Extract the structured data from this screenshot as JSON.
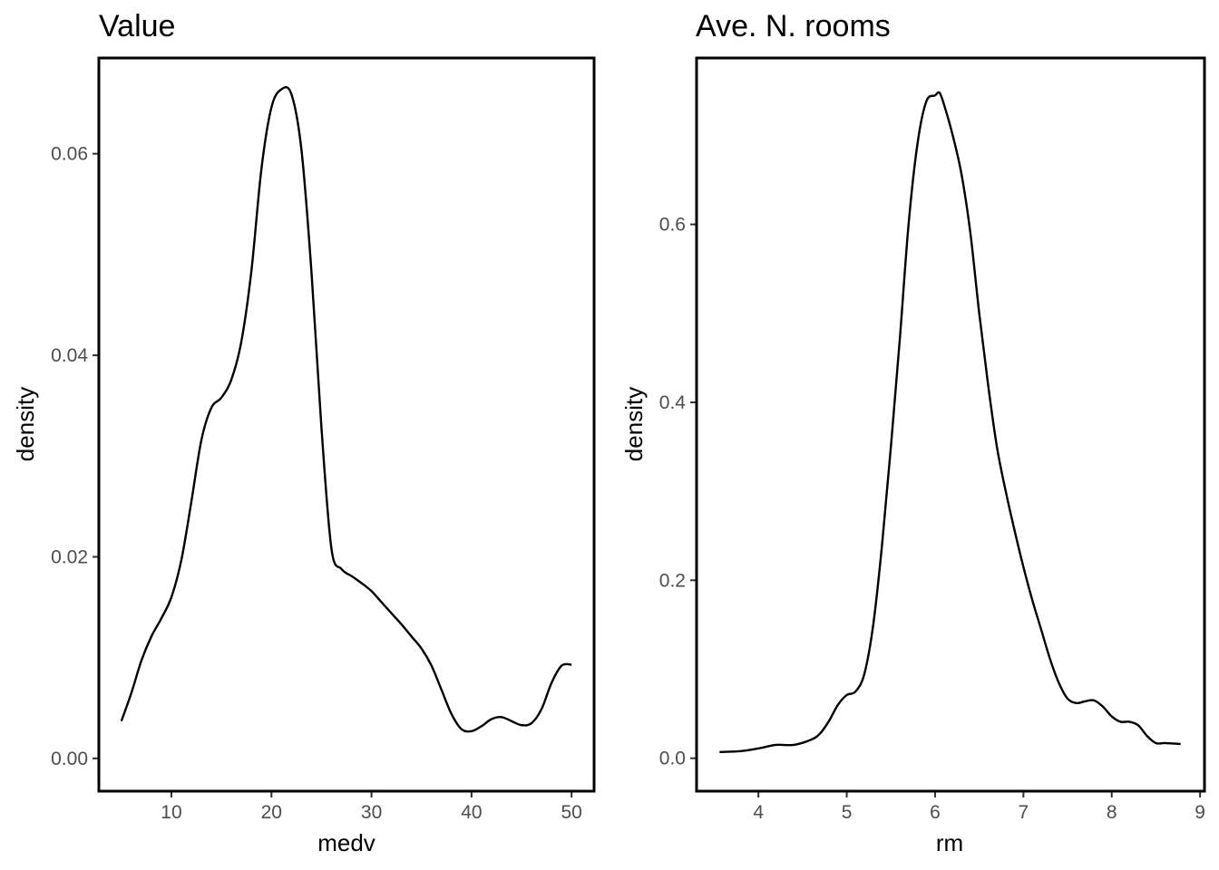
{
  "chart_data": [
    {
      "type": "line",
      "title": "Value",
      "xlabel": "medv",
      "ylabel": "density",
      "xlim": [
        2.75,
        52.25
      ],
      "ylim": [
        -0.00325,
        0.0695
      ],
      "xticks": [
        10,
        20,
        30,
        40,
        50
      ],
      "xtick_labels": [
        "10",
        "20",
        "30",
        "40",
        "50"
      ],
      "yticks": [
        0,
        0.02,
        0.04,
        0.06
      ],
      "ytick_labels": [
        "0.00",
        "0.02",
        "0.04",
        "0.06"
      ],
      "grid": false,
      "series": [
        {
          "x": [
            5,
            6,
            7,
            8,
            9,
            10,
            11,
            12,
            13,
            14,
            15,
            16,
            17,
            18,
            19,
            20,
            21,
            22,
            23,
            24,
            25,
            26,
            27,
            28,
            29,
            30,
            31,
            32,
            33,
            34,
            35,
            36,
            37,
            38,
            39,
            40,
            41,
            42,
            43,
            44,
            45,
            46,
            47,
            48,
            49,
            50
          ],
          "y": [
            0.0037,
            0.0065,
            0.0097,
            0.0121,
            0.0139,
            0.016,
            0.0197,
            0.0255,
            0.0316,
            0.0348,
            0.0358,
            0.0376,
            0.0414,
            0.0484,
            0.0585,
            0.0646,
            0.0664,
            0.0659,
            0.0604,
            0.0483,
            0.0328,
            0.0208,
            0.0188,
            0.0181,
            0.0174,
            0.0166,
            0.0155,
            0.0144,
            0.0133,
            0.0121,
            0.0109,
            0.0092,
            0.0068,
            0.0044,
            0.0029,
            0.0027,
            0.0032,
            0.0039,
            0.0041,
            0.0037,
            0.0033,
            0.0035,
            0.0049,
            0.0075,
            0.0092,
            0.0093
          ]
        }
      ]
    },
    {
      "type": "line",
      "title": "Ave. N. rooms",
      "xlabel": "rm",
      "ylabel": "density",
      "xlim": [
        3.3,
        9.05
      ],
      "ylim": [
        -0.037,
        0.787
      ],
      "xticks": [
        4,
        5,
        6,
        7,
        8,
        9
      ],
      "xtick_labels": [
        "4",
        "5",
        "6",
        "7",
        "8",
        "9"
      ],
      "yticks": [
        0,
        0.2,
        0.4,
        0.6
      ],
      "ytick_labels": [
        "0.0",
        "0.2",
        "0.4",
        "0.6"
      ],
      "grid": false,
      "series": [
        {
          "x": [
            3.56,
            3.8,
            4.0,
            4.2,
            4.4,
            4.6,
            4.7,
            4.8,
            4.9,
            5.0,
            5.1,
            5.2,
            5.3,
            5.4,
            5.5,
            5.6,
            5.7,
            5.8,
            5.9,
            6.0,
            6.05,
            6.1,
            6.2,
            6.3,
            6.4,
            6.5,
            6.6,
            6.7,
            6.8,
            6.9,
            7.0,
            7.1,
            7.2,
            7.3,
            7.4,
            7.5,
            7.6,
            7.7,
            7.8,
            7.9,
            8.0,
            8.1,
            8.2,
            8.3,
            8.4,
            8.5,
            8.6,
            8.78
          ],
          "y": [
            0.007,
            0.008,
            0.011,
            0.015,
            0.015,
            0.021,
            0.028,
            0.042,
            0.06,
            0.071,
            0.075,
            0.095,
            0.15,
            0.24,
            0.35,
            0.47,
            0.6,
            0.69,
            0.738,
            0.745,
            0.748,
            0.735,
            0.7,
            0.656,
            0.59,
            0.5,
            0.42,
            0.35,
            0.3,
            0.256,
            0.215,
            0.178,
            0.145,
            0.112,
            0.085,
            0.067,
            0.062,
            0.064,
            0.065,
            0.058,
            0.047,
            0.041,
            0.041,
            0.037,
            0.025,
            0.017,
            0.017,
            0.016
          ]
        }
      ]
    }
  ]
}
